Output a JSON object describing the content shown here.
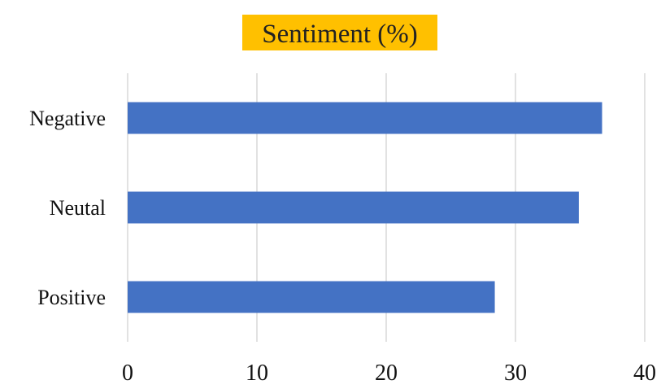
{
  "chart_data": {
    "type": "bar",
    "orientation": "horizontal",
    "title": "Sentiment (%)",
    "categories": [
      "Negative",
      "Neutal",
      "Positive"
    ],
    "values": [
      36.7,
      34.9,
      28.4
    ],
    "xlim": [
      0,
      40
    ],
    "xticks": [
      0,
      10,
      20,
      30,
      40
    ],
    "grid": "vertical",
    "colors": {
      "bar": "#4472c4",
      "title_background": "#ffc000",
      "gridline": "#d9d9d9"
    }
  }
}
